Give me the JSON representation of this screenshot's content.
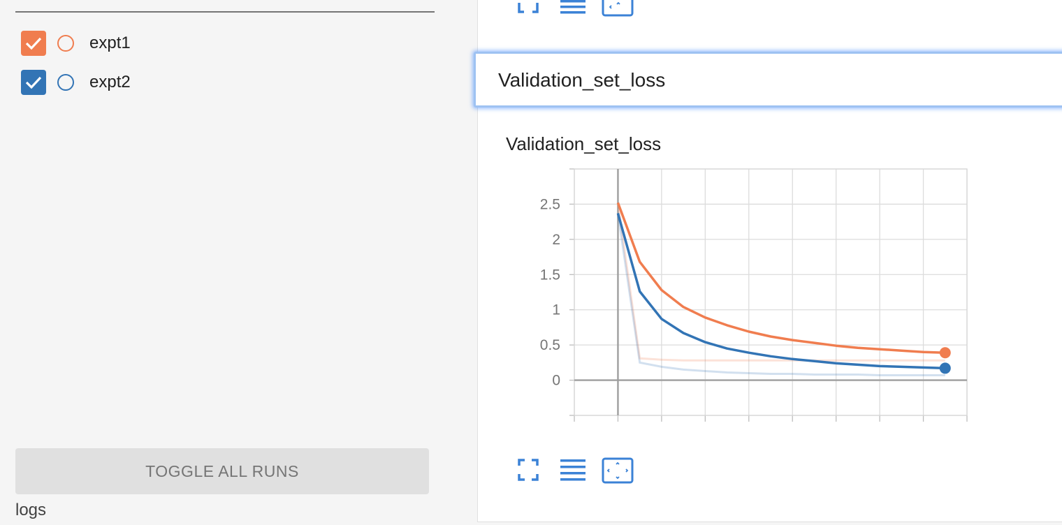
{
  "sidebar": {
    "runs": [
      {
        "label": "expt1",
        "color": "#f07d4f",
        "checked": true
      },
      {
        "label": "expt2",
        "color": "#3274b5",
        "checked": true
      }
    ],
    "toggle_all_label": "TOGGLE ALL RUNS",
    "logdir_label": "logs"
  },
  "card": {
    "section_title": "Validation_set_loss",
    "chart_title": "Validation_set_loss",
    "tool_icons": [
      "fullscreen-icon",
      "lines-icon",
      "fit-domain-icon"
    ]
  },
  "chart_data": {
    "type": "line",
    "title": "Validation_set_loss",
    "xlabel": "",
    "ylabel": "",
    "xlim": [
      -2,
      16
    ],
    "ylim": [
      -0.5,
      3.0
    ],
    "x_ticks": [
      0,
      2,
      4,
      6,
      8,
      10,
      12,
      14
    ],
    "y_ticks": [
      0,
      0.5,
      1,
      1.5,
      2,
      2.5
    ],
    "grid": true,
    "series": [
      {
        "run": "expt1",
        "color": "#f07d4f",
        "x": [
          0,
          1,
          2,
          3,
          4,
          5,
          6,
          7,
          8,
          9,
          10,
          11,
          12,
          13,
          14,
          15
        ],
        "smoothed": [
          2.52,
          1.68,
          1.28,
          1.04,
          0.89,
          0.78,
          0.69,
          0.62,
          0.57,
          0.53,
          0.49,
          0.46,
          0.44,
          0.42,
          0.4,
          0.39
        ],
        "raw": [
          2.52,
          0.31,
          0.29,
          0.28,
          0.28,
          0.28,
          0.28,
          0.28,
          0.28,
          0.28,
          0.28,
          0.28,
          0.28,
          0.28,
          0.28,
          0.28
        ]
      },
      {
        "run": "expt2",
        "color": "#3274b5",
        "x": [
          0,
          1,
          2,
          3,
          4,
          5,
          6,
          7,
          8,
          9,
          10,
          11,
          12,
          13,
          14,
          15
        ],
        "smoothed": [
          2.37,
          1.26,
          0.87,
          0.67,
          0.54,
          0.45,
          0.39,
          0.34,
          0.3,
          0.27,
          0.24,
          0.22,
          0.2,
          0.19,
          0.18,
          0.17
        ],
        "raw": [
          2.37,
          0.25,
          0.19,
          0.15,
          0.13,
          0.11,
          0.1,
          0.09,
          0.09,
          0.08,
          0.08,
          0.08,
          0.07,
          0.07,
          0.07,
          0.07
        ]
      }
    ]
  }
}
